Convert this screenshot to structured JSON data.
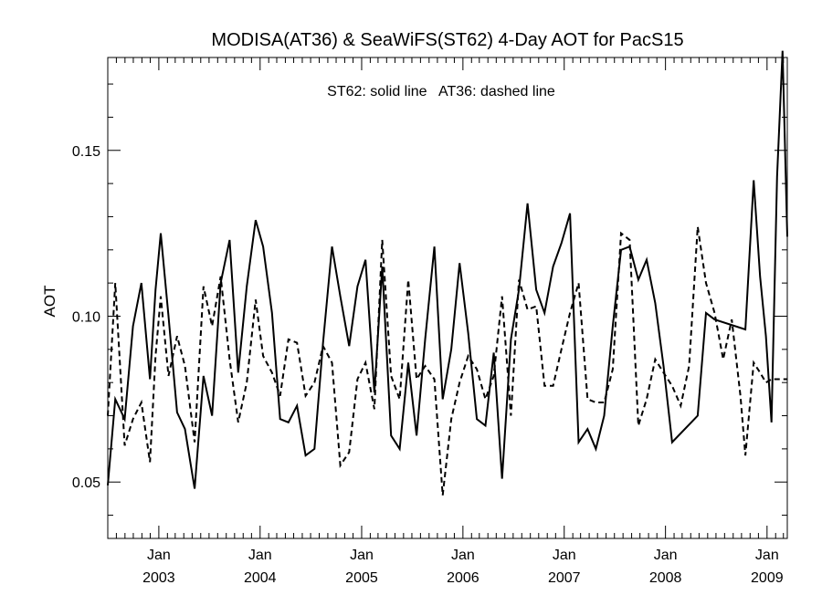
{
  "chart_data": {
    "type": "line",
    "title": "MODISA(AT36) & SeaWiFS(ST62) 4-Day AOT for PacS15",
    "annotation": "ST62: solid line   AT36: dashed line",
    "ylabel": "AOT",
    "xlabel": "",
    "ylim": [
      0.033,
      0.178
    ],
    "xlim": [
      "2002-07-01",
      "2009-03-15"
    ],
    "x_tick_labels": [
      {
        "month": "Jan",
        "year": "2003",
        "date": "2003-01-01"
      },
      {
        "month": "Jan",
        "year": "2004",
        "date": "2004-01-01"
      },
      {
        "month": "Jan",
        "year": "2005",
        "date": "2005-01-01"
      },
      {
        "month": "Jan",
        "year": "2006",
        "date": "2006-01-01"
      },
      {
        "month": "Jan",
        "year": "2007",
        "date": "2007-01-01"
      },
      {
        "month": "Jan",
        "year": "2008",
        "date": "2008-01-01"
      },
      {
        "month": "Jan",
        "year": "2009",
        "date": "2009-01-01"
      }
    ],
    "y_tick_labels": [
      "0.05",
      "0.10",
      "0.15"
    ],
    "y_tick_values": [
      0.05,
      0.1,
      0.15
    ],
    "grid": false,
    "series": [
      {
        "name": "ST62",
        "style": "solid",
        "x": [
          "2002-07-01",
          "2002-07-28",
          "2002-08-31",
          "2002-09-30",
          "2002-10-30",
          "2002-11-30",
          "2002-12-20",
          "2003-01-08",
          "2003-02-05",
          "2003-03-08",
          "2003-04-05",
          "2003-05-10",
          "2003-06-11",
          "2003-07-12",
          "2003-08-12",
          "2003-09-13",
          "2003-10-14",
          "2003-11-14",
          "2003-12-16",
          "2004-01-12",
          "2004-02-13",
          "2004-03-13",
          "2004-04-12",
          "2004-05-13",
          "2004-06-13",
          "2004-07-15",
          "2004-08-15",
          "2004-09-16",
          "2004-10-16",
          "2004-11-17",
          "2004-12-17",
          "2005-01-15",
          "2005-02-16",
          "2005-03-16",
          "2005-04-17",
          "2005-05-18",
          "2005-06-18",
          "2005-07-18",
          "2005-08-18",
          "2005-09-20",
          "2005-10-20",
          "2005-11-20",
          "2005-12-20",
          "2006-01-20",
          "2006-02-20",
          "2006-03-23",
          "2006-04-22",
          "2006-05-22",
          "2006-06-23",
          "2006-07-22",
          "2006-08-22",
          "2006-09-22",
          "2006-10-22",
          "2006-11-22",
          "2006-12-22",
          "2007-01-22",
          "2007-02-22",
          "2007-03-26",
          "2007-04-25",
          "2007-05-25",
          "2007-06-25",
          "2007-07-25",
          "2007-08-25",
          "2007-09-25",
          "2007-10-25",
          "2007-11-25",
          "2007-12-25",
          "2008-01-25",
          "2008-04-26",
          "2008-05-26",
          "2008-06-26",
          "2008-10-15",
          "2008-11-14",
          "2008-12-07",
          "2008-12-28",
          "2009-01-17",
          "2009-02-06",
          "2009-02-26",
          "2009-03-15"
        ],
        "values": [
          0.049,
          0.075,
          0.069,
          0.097,
          0.11,
          0.081,
          0.108,
          0.125,
          0.1,
          0.071,
          0.066,
          0.048,
          0.082,
          0.07,
          0.11,
          0.123,
          0.083,
          0.109,
          0.129,
          0.121,
          0.101,
          0.069,
          0.068,
          0.073,
          0.058,
          0.06,
          0.092,
          0.121,
          0.106,
          0.091,
          0.109,
          0.117,
          0.077,
          0.115,
          0.064,
          0.06,
          0.086,
          0.064,
          0.093,
          0.121,
          0.075,
          0.09,
          0.116,
          0.095,
          0.069,
          0.067,
          0.089,
          0.051,
          0.093,
          0.108,
          0.134,
          0.108,
          0.101,
          0.115,
          0.122,
          0.131,
          0.062,
          0.066,
          0.06,
          0.07,
          0.097,
          0.12,
          0.121,
          0.111,
          0.117,
          0.104,
          0.085,
          0.062,
          0.07,
          0.101,
          0.099,
          0.096,
          0.141,
          0.112,
          0.094,
          0.068,
          0.142,
          0.18,
          0.124
        ]
      },
      {
        "name": "AT36",
        "style": "dashed",
        "x": [
          "2002-07-01",
          "2002-07-28",
          "2002-08-31",
          "2002-09-30",
          "2002-10-30",
          "2002-11-30",
          "2002-12-20",
          "2003-01-08",
          "2003-02-05",
          "2003-03-08",
          "2003-04-05",
          "2003-05-10",
          "2003-06-11",
          "2003-07-12",
          "2003-08-12",
          "2003-09-13",
          "2003-10-14",
          "2003-11-14",
          "2003-12-16",
          "2004-01-12",
          "2004-02-13",
          "2004-03-13",
          "2004-04-12",
          "2004-05-13",
          "2004-06-13",
          "2004-07-15",
          "2004-08-15",
          "2004-09-16",
          "2004-10-16",
          "2004-11-17",
          "2004-12-17",
          "2005-01-15",
          "2005-02-16",
          "2005-03-16",
          "2005-04-17",
          "2005-05-18",
          "2005-06-18",
          "2005-07-18",
          "2005-08-18",
          "2005-09-20",
          "2005-10-20",
          "2005-11-20",
          "2005-12-20",
          "2006-01-20",
          "2006-02-20",
          "2006-03-23",
          "2006-04-22",
          "2006-05-22",
          "2006-06-23",
          "2006-07-22",
          "2006-08-22",
          "2006-09-22",
          "2006-10-22",
          "2006-11-22",
          "2006-12-22",
          "2007-01-22",
          "2007-02-22",
          "2007-03-26",
          "2007-04-25",
          "2007-05-25",
          "2007-06-25",
          "2007-07-25",
          "2007-08-25",
          "2007-09-25",
          "2007-10-25",
          "2007-11-25",
          "2007-12-25",
          "2008-01-25",
          "2008-02-25",
          "2008-03-26",
          "2008-04-26",
          "2008-05-26",
          "2008-06-26",
          "2008-07-27",
          "2008-08-27",
          "2008-09-27",
          "2008-10-15",
          "2008-11-14",
          "2008-12-07",
          "2008-12-28",
          "2009-01-17",
          "2009-02-06",
          "2009-02-26",
          "2009-03-15"
        ],
        "values": [
          0.07,
          0.11,
          0.061,
          0.069,
          0.074,
          0.056,
          0.088,
          0.106,
          0.082,
          0.094,
          0.085,
          0.062,
          0.109,
          0.097,
          0.112,
          0.087,
          0.068,
          0.08,
          0.105,
          0.088,
          0.083,
          0.076,
          0.093,
          0.092,
          0.076,
          0.08,
          0.091,
          0.086,
          0.055,
          0.059,
          0.081,
          0.086,
          0.072,
          0.123,
          0.082,
          0.075,
          0.111,
          0.081,
          0.085,
          0.081,
          0.046,
          0.069,
          0.08,
          0.088,
          0.084,
          0.075,
          0.082,
          0.106,
          0.07,
          0.111,
          0.102,
          0.103,
          0.079,
          0.079,
          0.09,
          0.101,
          0.11,
          0.075,
          0.074,
          0.074,
          0.084,
          0.125,
          0.123,
          0.067,
          0.075,
          0.087,
          0.083,
          0.079,
          0.073,
          0.085,
          0.127,
          0.11,
          0.101,
          0.087,
          0.099,
          0.076,
          0.058,
          0.086,
          0.083,
          0.08,
          0.081,
          0.081,
          0.081,
          0.081
        ]
      }
    ]
  }
}
